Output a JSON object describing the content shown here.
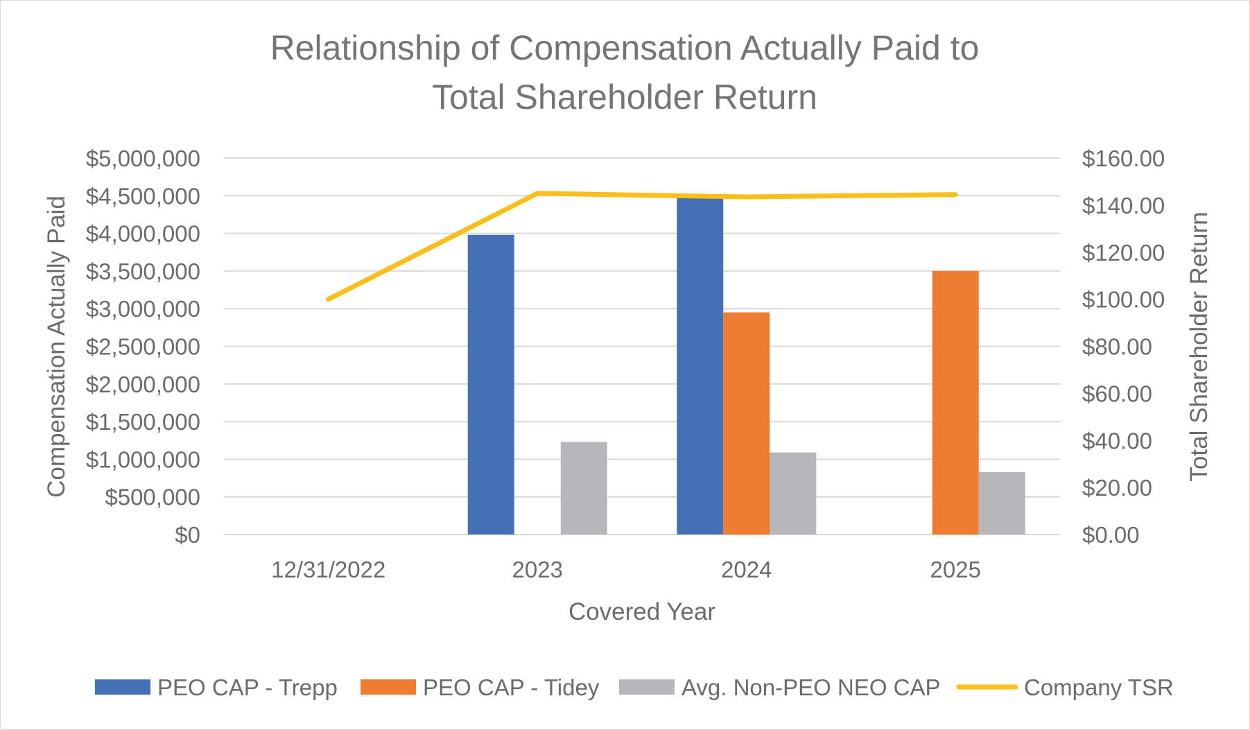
{
  "chart_data": {
    "type": "bar",
    "title_lines": [
      "Relationship of Compensation Actually Paid to",
      "Total Shareholder Return"
    ],
    "xlabel": "Covered Year",
    "ylabel": "Compensation Actually Paid",
    "ylabel_right": "Total Shareholder Return",
    "categories": [
      "12/31/2022",
      "2023",
      "2024",
      "2025"
    ],
    "ylim": [
      0,
      5000000
    ],
    "y_ticks": [
      0,
      500000,
      1000000,
      1500000,
      2000000,
      2500000,
      3000000,
      3500000,
      4000000,
      4500000,
      5000000
    ],
    "y_tick_labels": [
      "$0",
      "$500,000",
      "$1,000,000",
      "$1,500,000",
      "$2,000,000",
      "$2,500,000",
      "$3,000,000",
      "$3,500,000",
      "$4,000,000",
      "$4,500,000",
      "$5,000,000"
    ],
    "y2lim": [
      0,
      160
    ],
    "y2_ticks": [
      0,
      20,
      40,
      60,
      80,
      100,
      120,
      140,
      160
    ],
    "y2_tick_labels": [
      "$0.00",
      "$20.00",
      "$40.00",
      "$60.00",
      "$80.00",
      "$100.00",
      "$120.00",
      "$140.00",
      "$160.00"
    ],
    "series": [
      {
        "name": "PEO CAP - Trepp",
        "type": "bar",
        "axis": "left",
        "color": "#4670b6",
        "values": [
          null,
          3980000,
          4480000,
          null
        ]
      },
      {
        "name": "PEO CAP - Tidey",
        "type": "bar",
        "axis": "left",
        "color": "#ee7d31",
        "values": [
          null,
          null,
          2950000,
          3500000
        ]
      },
      {
        "name": "Avg. Non-PEO NEO CAP",
        "type": "bar",
        "axis": "left",
        "color": "#b6b7b8",
        "values": [
          null,
          1230000,
          1090000,
          830000
        ]
      },
      {
        "name": "Company TSR",
        "type": "line",
        "axis": "right",
        "color": "#fbbf1b",
        "values": [
          100,
          145,
          143.5,
          144.5
        ]
      }
    ],
    "legend_position": "bottom",
    "grid": true
  }
}
